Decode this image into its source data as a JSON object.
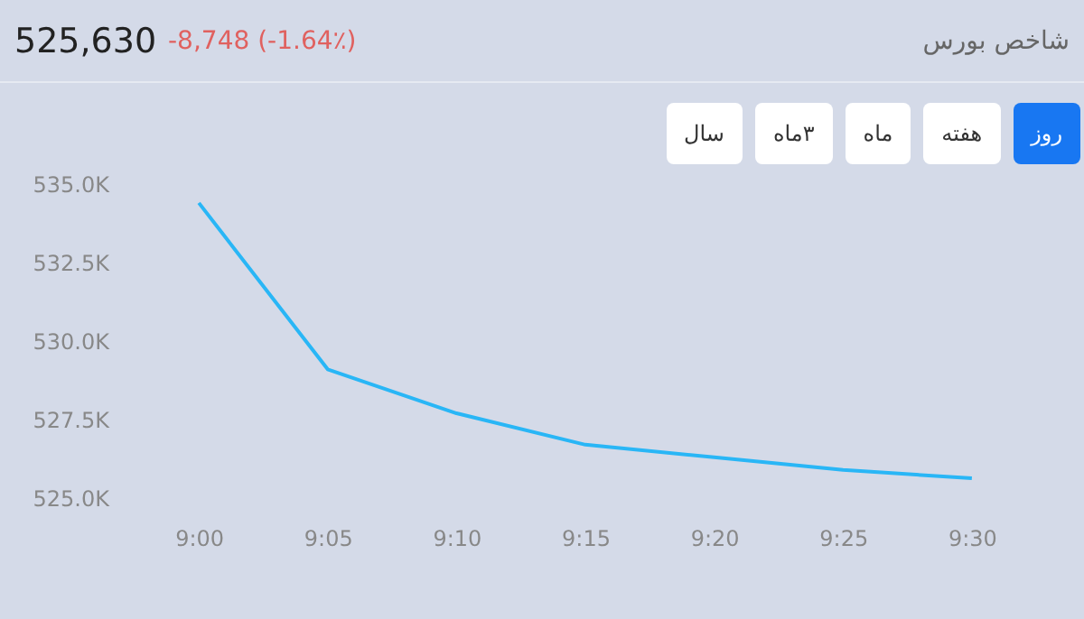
{
  "chart_data": {
    "type": "line",
    "title": "شاخص بورس",
    "subtitle": "525,630",
    "annotations": [
      "-8,748 (-1.64٪)",
      "روز",
      "هفته",
      "ماه",
      "۳ماه",
      "سال"
    ],
    "categories": [
      "9:00",
      "9:05",
      "9:10",
      "9:15",
      "9:20",
      "9:25",
      "9:30"
    ],
    "series": [
      {
        "color": "#29b6f6",
        "values": [
          534.4,
          529.1,
          527.7,
          526.7,
          526.3,
          525.9,
          525.63
        ]
      }
    ],
    "ylim": [
      525,
      535
    ],
    "yticks": [
      {
        "value": 525,
        "label": "525.0K"
      },
      {
        "value": 527.5,
        "label": "527.5K"
      },
      {
        "value": 530,
        "label": "530.0K"
      },
      {
        "value": 532.5,
        "label": "532.5K"
      },
      {
        "value": 535,
        "label": "535.0K"
      }
    ],
    "grid": false,
    "legend": false,
    "marker": "none",
    "line_style": "solid"
  }
}
